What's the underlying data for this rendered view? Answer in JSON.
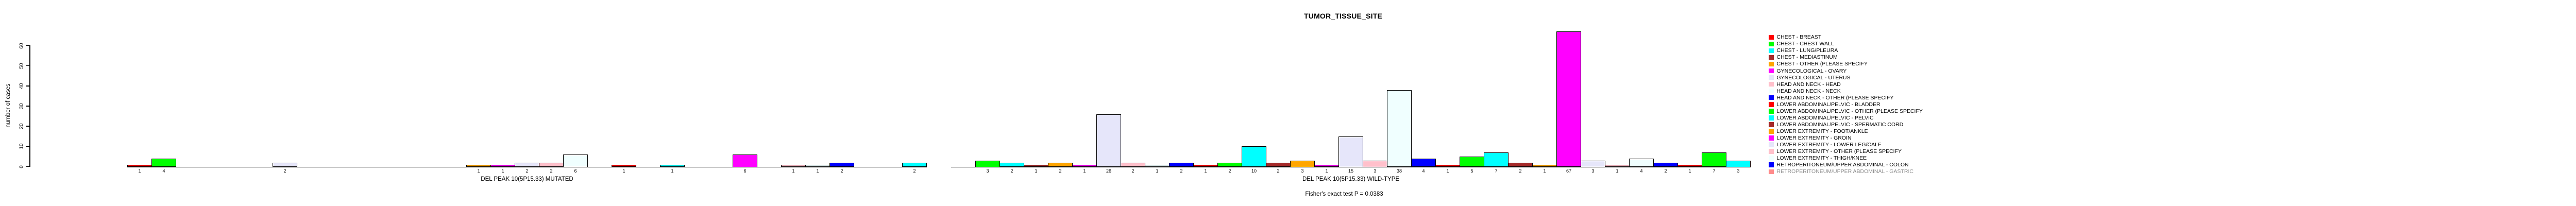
{
  "title": "TUMOR_TISSUE_SITE",
  "y_axis": {
    "label": "number of cases",
    "ticks": [
      0,
      10,
      20,
      30,
      40,
      50,
      60
    ],
    "max": 60
  },
  "fisher_note": "Fisher's exact test P = 0.0383",
  "palette": {
    "names": [
      "red",
      "green",
      "cyan",
      "brown",
      "orange",
      "magenta",
      "lavender",
      "pink",
      "azure",
      "blue"
    ],
    "hex": [
      "#FF0000",
      "#00FF00",
      "#00FFFF",
      "#A52A2A",
      "#FFA500",
      "#FF00FF",
      "#E6E6FA",
      "#FFC0CB",
      "#F0FFFF",
      "#0000FF"
    ]
  },
  "legend": {
    "entries": [
      "CHEST - BREAST",
      "CHEST - CHEST WALL",
      "CHEST - LUNG/PLEURA",
      "CHEST - MEDIASTINUM",
      "CHEST - OTHER (PLEASE SPECIFY",
      "GYNECOLOGICAL - OVARY",
      "GYNECOLOGICAL - UTERUS",
      "HEAD AND NECK - HEAD",
      "HEAD AND NECK - NECK",
      "HEAD AND NECK - OTHER (PLEASE SPECIFY",
      "LOWER ABDOMINAL/PELVIC - BLADDER",
      "LOWER ABDOMINAL/PELVIC - OTHER (PLEASE SPECIFY",
      "LOWER ABDOMINAL/PELVIC - PELVIC",
      "LOWER ABDOMINAL/PELVIC - SPERMATIC CORD",
      "LOWER EXTREMITY - FOOT/ANKLE",
      "LOWER EXTREMITY - GROIN",
      "LOWER EXTREMITY - LOWER LEG/CALF",
      "LOWER EXTREMITY - OTHER (PLEASE SPECIFY",
      "LOWER EXTREMITY - THIGH/KNEE",
      "RETROPERITONEUM/UPPER ABDOMINAL - COLON",
      "RETROPERITONEUM/UPPER ABDOMINAL - GASTRIC"
    ],
    "last_entry_faded": true
  },
  "chart_data": {
    "type": "bar",
    "title": "TUMOR_TISSUE_SITE",
    "ylabel": "number of cases",
    "ylim": [
      0,
      60
    ],
    "grid": false,
    "legend_position": "right",
    "n_category_slots_per_group": 33,
    "color_cycle": [
      "#FF0000",
      "#00FF00",
      "#00FFFF",
      "#A52A2A",
      "#FFA500",
      "#FF00FF",
      "#E6E6FA",
      "#FFC0CB",
      "#F0FFFF",
      "#0000FF"
    ],
    "categories_visible_in_legend": [
      "CHEST - BREAST",
      "CHEST - CHEST WALL",
      "CHEST - LUNG/PLEURA",
      "CHEST - MEDIASTINUM",
      "CHEST - OTHER (PLEASE SPECIFY",
      "GYNECOLOGICAL - OVARY",
      "GYNECOLOGICAL - UTERUS",
      "HEAD AND NECK - HEAD",
      "HEAD AND NECK - NECK",
      "HEAD AND NECK - OTHER (PLEASE SPECIFY",
      "LOWER ABDOMINAL/PELVIC - BLADDER",
      "LOWER ABDOMINAL/PELVIC - OTHER (PLEASE SPECIFY",
      "LOWER ABDOMINAL/PELVIC - PELVIC",
      "LOWER ABDOMINAL/PELVIC - SPERMATIC CORD",
      "LOWER EXTREMITY - FOOT/ANKLE",
      "LOWER EXTREMITY - GROIN",
      "LOWER EXTREMITY - LOWER LEG/CALF",
      "LOWER EXTREMITY - OTHER (PLEASE SPECIFY",
      "LOWER EXTREMITY - THIGH/KNEE",
      "RETROPERITONEUM/UPPER ABDOMINAL - COLON",
      "RETROPERITONEUM/UPPER ABDOMINAL - GASTRIC"
    ],
    "series": [
      {
        "name": "DEL PEAK 10(5P15.33) MUTATED",
        "points": [
          {
            "slot": 0,
            "value": 1
          },
          {
            "slot": 1,
            "value": 4
          },
          {
            "slot": 6,
            "value": 2
          },
          {
            "slot": 14,
            "value": 1
          },
          {
            "slot": 15,
            "value": 1
          },
          {
            "slot": 16,
            "value": 2
          },
          {
            "slot": 17,
            "value": 2
          },
          {
            "slot": 18,
            "value": 6
          },
          {
            "slot": 20,
            "value": 1
          },
          {
            "slot": 22,
            "value": 1
          },
          {
            "slot": 25,
            "value": 6
          },
          {
            "slot": 27,
            "value": 1
          },
          {
            "slot": 28,
            "value": 1
          },
          {
            "slot": 29,
            "value": 2
          },
          {
            "slot": 32,
            "value": 2
          }
        ]
      },
      {
        "name": "DEL PEAK 10(5P15.33) WILD-TYPE",
        "points": [
          {
            "slot": 1,
            "value": 3
          },
          {
            "slot": 2,
            "value": 2
          },
          {
            "slot": 3,
            "value": 1
          },
          {
            "slot": 4,
            "value": 2
          },
          {
            "slot": 5,
            "value": 1
          },
          {
            "slot": 6,
            "value": 26
          },
          {
            "slot": 7,
            "value": 2
          },
          {
            "slot": 8,
            "value": 1
          },
          {
            "slot": 9,
            "value": 2
          },
          {
            "slot": 10,
            "value": 1
          },
          {
            "slot": 11,
            "value": 2
          },
          {
            "slot": 12,
            "value": 10
          },
          {
            "slot": 13,
            "value": 2
          },
          {
            "slot": 14,
            "value": 3
          },
          {
            "slot": 15,
            "value": 1
          },
          {
            "slot": 16,
            "value": 15
          },
          {
            "slot": 17,
            "value": 3
          },
          {
            "slot": 18,
            "value": 38
          },
          {
            "slot": 19,
            "value": 4
          },
          {
            "slot": 20,
            "value": 1
          },
          {
            "slot": 21,
            "value": 5
          },
          {
            "slot": 22,
            "value": 7
          },
          {
            "slot": 23,
            "value": 2
          },
          {
            "slot": 24,
            "value": 1
          },
          {
            "slot": 25,
            "value": 67
          },
          {
            "slot": 26,
            "value": 3
          },
          {
            "slot": 27,
            "value": 1
          },
          {
            "slot": 28,
            "value": 4
          },
          {
            "slot": 29,
            "value": 2
          },
          {
            "slot": 30,
            "value": 1
          },
          {
            "slot": 31,
            "value": 7
          },
          {
            "slot": 32,
            "value": 3
          }
        ]
      }
    ],
    "annotation": "Fisher's exact test P = 0.0383"
  }
}
